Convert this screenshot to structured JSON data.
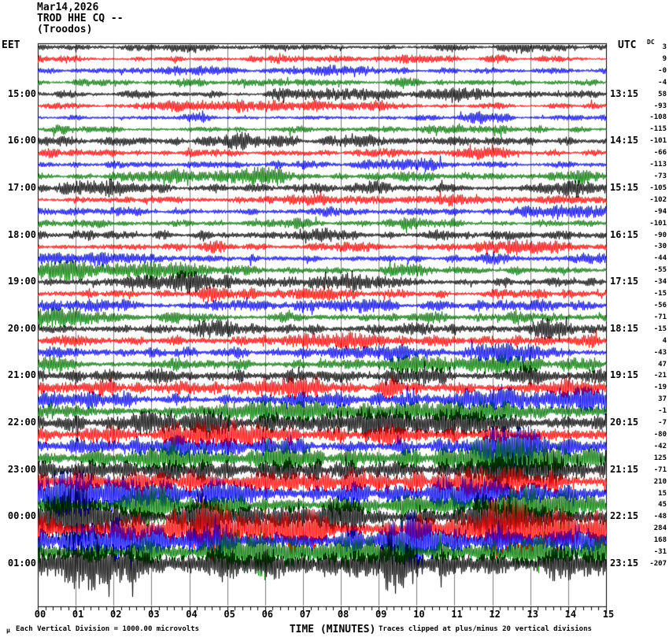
{
  "title": {
    "date": "Mar14,2026",
    "station": "TROD HHE CQ --",
    "location": "(Troodos)"
  },
  "axes": {
    "left_label": "EET",
    "right_label": "UTC",
    "dc_label": "DC",
    "x_axis_title": "TIME (MINUTES)",
    "x_tick_labels": [
      "00",
      "01",
      "02",
      "03",
      "04",
      "05",
      "06",
      "07",
      "08",
      "09",
      "10",
      "11",
      "12",
      "13",
      "14",
      "15"
    ]
  },
  "footer": {
    "micro_glyph": "μ",
    "scale_note": "Each Vertical Division = 1000.00 microvolts",
    "clip_note": "Traces clipped at plus/minus 20 vertical divisions"
  },
  "chart_data": {
    "type": "line",
    "subtype": "helicorder-seismogram",
    "station_id": "TROD HHE CQ --",
    "station_name": "(Troodos)",
    "date": "Mar14,2026",
    "left_timezone": "EET",
    "right_timezone": "UTC",
    "minutes_per_row": 15,
    "x_range_minutes": [
      0,
      15
    ],
    "x_minor_ticks_per_minute": 5,
    "microvolts_per_division": 1000,
    "clip_divisions": 20,
    "grid_on": true,
    "grid_color": "#7b7b7b",
    "trace_color_cycle": [
      "#000000",
      "#ff0000",
      "#0000ee",
      "#007300"
    ],
    "rows": [
      {
        "eet": "",
        "utc": "",
        "dc": "3",
        "amp": 3.2
      },
      {
        "eet": "",
        "utc": "",
        "dc": "9",
        "amp": 2.8
      },
      {
        "eet": "",
        "utc": "",
        "dc": "-0",
        "amp": 2.8
      },
      {
        "eet": "",
        "utc": "",
        "dc": "-4",
        "amp": 3.0
      },
      {
        "eet": "15:00",
        "utc": "13:15",
        "dc": "58",
        "amp": 3.6
      },
      {
        "eet": "",
        "utc": "",
        "dc": "-93",
        "amp": 3.0
      },
      {
        "eet": "",
        "utc": "",
        "dc": "-108",
        "amp": 3.0
      },
      {
        "eet": "",
        "utc": "",
        "dc": "-115",
        "amp": 3.2
      },
      {
        "eet": "16:00",
        "utc": "14:15",
        "dc": "-101",
        "amp": 4.0
      },
      {
        "eet": "",
        "utc": "",
        "dc": "-66",
        "amp": 3.4
      },
      {
        "eet": "",
        "utc": "",
        "dc": "-113",
        "amp": 3.6
      },
      {
        "eet": "",
        "utc": "",
        "dc": "-73",
        "amp": 3.8
      },
      {
        "eet": "17:00",
        "utc": "15:15",
        "dc": "-105",
        "amp": 4.2
      },
      {
        "eet": "",
        "utc": "",
        "dc": "-102",
        "amp": 3.8
      },
      {
        "eet": "",
        "utc": "",
        "dc": "-94",
        "amp": 3.8
      },
      {
        "eet": "",
        "utc": "",
        "dc": "-101",
        "amp": 4.0
      },
      {
        "eet": "18:00",
        "utc": "16:15",
        "dc": "-90",
        "amp": 4.4
      },
      {
        "eet": "",
        "utc": "",
        "dc": "-30",
        "amp": 3.8
      },
      {
        "eet": "",
        "utc": "",
        "dc": "-44",
        "amp": 4.0
      },
      {
        "eet": "",
        "utc": "",
        "dc": "-55",
        "amp": 4.2
      },
      {
        "eet": "19:00",
        "utc": "17:15",
        "dc": "-34",
        "amp": 4.8
      },
      {
        "eet": "",
        "utc": "",
        "dc": "-15",
        "amp": 4.4
      },
      {
        "eet": "",
        "utc": "",
        "dc": "-56",
        "amp": 4.6
      },
      {
        "eet": "",
        "utc": "",
        "dc": "-71",
        "amp": 5.0
      },
      {
        "eet": "20:00",
        "utc": "18:15",
        "dc": "-15",
        "amp": 5.4
      },
      {
        "eet": "",
        "utc": "",
        "dc": "4",
        "amp": 5.2
      },
      {
        "eet": "",
        "utc": "",
        "dc": "-43",
        "amp": 5.6
      },
      {
        "eet": "",
        "utc": "",
        "dc": "47",
        "amp": 6.0
      },
      {
        "eet": "21:00",
        "utc": "19:15",
        "dc": "-21",
        "amp": 6.5
      },
      {
        "eet": "",
        "utc": "",
        "dc": "-19",
        "amp": 6.2
      },
      {
        "eet": "",
        "utc": "",
        "dc": "37",
        "amp": 6.8
      },
      {
        "eet": "",
        "utc": "",
        "dc": "-1",
        "amp": 7.2
      },
      {
        "eet": "22:00",
        "utc": "20:15",
        "dc": "-7",
        "amp": 8.5
      },
      {
        "eet": "",
        "utc": "",
        "dc": "-80",
        "amp": 8.0
      },
      {
        "eet": "",
        "utc": "",
        "dc": "-42",
        "amp": 9.0
      },
      {
        "eet": "",
        "utc": "",
        "dc": "125",
        "amp": 9.5
      },
      {
        "eet": "23:00",
        "utc": "21:15",
        "dc": "-71",
        "amp": 10.5
      },
      {
        "eet": "",
        "utc": "",
        "dc": "210",
        "amp": 12.0
      },
      {
        "eet": "",
        "utc": "",
        "dc": "15",
        "amp": 10.5
      },
      {
        "eet": "",
        "utc": "",
        "dc": "45",
        "amp": 11.0
      },
      {
        "eet": "00:00",
        "utc": "22:15",
        "dc": "-48",
        "amp": 13.0
      },
      {
        "eet": "",
        "utc": "",
        "dc": "284",
        "amp": 15.0
      },
      {
        "eet": "",
        "utc": "",
        "dc": "168",
        "amp": 14.0
      },
      {
        "eet": "",
        "utc": "",
        "dc": "-31",
        "amp": 14.0
      },
      {
        "eet": "01:00",
        "utc": "23:15",
        "dc": "-207",
        "amp": 15.5
      }
    ]
  }
}
